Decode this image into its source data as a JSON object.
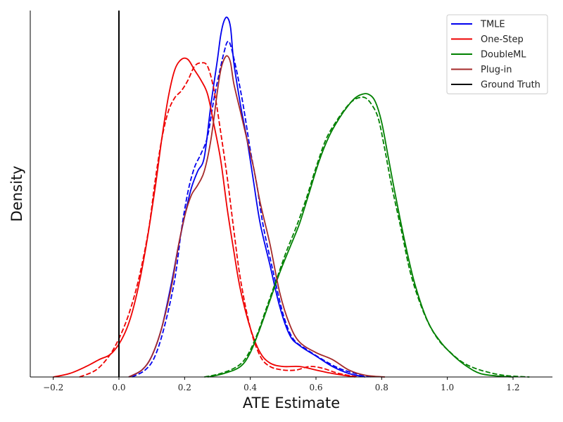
{
  "chart_data": {
    "type": "line",
    "title": "",
    "xlabel": "ATE Estimate",
    "ylabel": "Density",
    "xlim": [
      -0.27,
      1.32
    ],
    "ylim": [
      0,
      1.05
    ],
    "x_ticks": [
      -0.2,
      0.0,
      0.2,
      0.4,
      0.6,
      0.8,
      1.0,
      1.2
    ],
    "x_tick_labels": [
      "−0.2",
      "0.0",
      "0.2",
      "0.4",
      "0.6",
      "0.8",
      "1.0",
      "1.2"
    ],
    "y_ticks_shown": false,
    "grid": false,
    "legend_position": "top-right",
    "ground_truth": {
      "name": "Ground Truth",
      "x": 0.0,
      "color": "#000000"
    },
    "series": [
      {
        "name": "TMLE",
        "color": "#0000ee",
        "style": "solid",
        "points": [
          [
            0.03,
            0.0
          ],
          [
            0.07,
            0.02
          ],
          [
            0.1,
            0.06
          ],
          [
            0.13,
            0.14
          ],
          [
            0.16,
            0.27
          ],
          [
            0.18,
            0.37
          ],
          [
            0.2,
            0.46
          ],
          [
            0.22,
            0.54
          ],
          [
            0.24,
            0.59
          ],
          [
            0.26,
            0.63
          ],
          [
            0.28,
            0.78
          ],
          [
            0.3,
            0.91
          ],
          [
            0.31,
            0.98
          ],
          [
            0.32,
            1.02
          ],
          [
            0.33,
            1.03
          ],
          [
            0.34,
            1.0
          ],
          [
            0.35,
            0.9
          ],
          [
            0.37,
            0.78
          ],
          [
            0.39,
            0.68
          ],
          [
            0.41,
            0.56
          ],
          [
            0.43,
            0.44
          ],
          [
            0.46,
            0.32
          ],
          [
            0.49,
            0.2
          ],
          [
            0.52,
            0.12
          ],
          [
            0.55,
            0.09
          ],
          [
            0.6,
            0.06
          ],
          [
            0.65,
            0.03
          ],
          [
            0.7,
            0.01
          ],
          [
            0.75,
            0.0
          ]
        ]
      },
      {
        "name": "TMLE (dashed)",
        "color": "#0000ee",
        "style": "dashed",
        "points": [
          [
            0.04,
            0.0
          ],
          [
            0.08,
            0.02
          ],
          [
            0.11,
            0.06
          ],
          [
            0.14,
            0.15
          ],
          [
            0.17,
            0.28
          ],
          [
            0.19,
            0.42
          ],
          [
            0.21,
            0.53
          ],
          [
            0.23,
            0.6
          ],
          [
            0.25,
            0.64
          ],
          [
            0.27,
            0.69
          ],
          [
            0.29,
            0.8
          ],
          [
            0.31,
            0.89
          ],
          [
            0.32,
            0.93
          ],
          [
            0.33,
            0.96
          ],
          [
            0.34,
            0.95
          ],
          [
            0.36,
            0.87
          ],
          [
            0.38,
            0.77
          ],
          [
            0.4,
            0.65
          ],
          [
            0.42,
            0.55
          ],
          [
            0.44,
            0.43
          ],
          [
            0.47,
            0.3
          ],
          [
            0.5,
            0.18
          ],
          [
            0.53,
            0.11
          ],
          [
            0.57,
            0.08
          ],
          [
            0.62,
            0.05
          ],
          [
            0.67,
            0.025
          ],
          [
            0.72,
            0.01
          ],
          [
            0.77,
            0.0
          ]
        ]
      },
      {
        "name": "One-Step",
        "color": "#ee0000",
        "style": "solid",
        "points": [
          [
            -0.2,
            0.0
          ],
          [
            -0.15,
            0.01
          ],
          [
            -0.1,
            0.03
          ],
          [
            -0.06,
            0.05
          ],
          [
            -0.02,
            0.07
          ],
          [
            0.02,
            0.13
          ],
          [
            0.05,
            0.22
          ],
          [
            0.08,
            0.36
          ],
          [
            0.11,
            0.54
          ],
          [
            0.13,
            0.68
          ],
          [
            0.15,
            0.8
          ],
          [
            0.17,
            0.88
          ],
          [
            0.19,
            0.91
          ],
          [
            0.21,
            0.91
          ],
          [
            0.23,
            0.88
          ],
          [
            0.25,
            0.85
          ],
          [
            0.27,
            0.81
          ],
          [
            0.29,
            0.72
          ],
          [
            0.31,
            0.62
          ],
          [
            0.33,
            0.48
          ],
          [
            0.35,
            0.36
          ],
          [
            0.37,
            0.25
          ],
          [
            0.4,
            0.14
          ],
          [
            0.43,
            0.07
          ],
          [
            0.46,
            0.04
          ],
          [
            0.5,
            0.03
          ],
          [
            0.55,
            0.03
          ],
          [
            0.6,
            0.02
          ],
          [
            0.65,
            0.01
          ],
          [
            0.72,
            0.0
          ]
        ]
      },
      {
        "name": "One-Step (dashed)",
        "color": "#ee0000",
        "style": "dashed",
        "points": [
          [
            -0.12,
            0.0
          ],
          [
            -0.07,
            0.02
          ],
          [
            -0.03,
            0.06
          ],
          [
            0.0,
            0.11
          ],
          [
            0.03,
            0.18
          ],
          [
            0.06,
            0.28
          ],
          [
            0.09,
            0.42
          ],
          [
            0.11,
            0.56
          ],
          [
            0.13,
            0.68
          ],
          [
            0.15,
            0.76
          ],
          [
            0.17,
            0.8
          ],
          [
            0.19,
            0.82
          ],
          [
            0.21,
            0.85
          ],
          [
            0.23,
            0.89
          ],
          [
            0.25,
            0.9
          ],
          [
            0.27,
            0.89
          ],
          [
            0.29,
            0.82
          ],
          [
            0.31,
            0.7
          ],
          [
            0.33,
            0.57
          ],
          [
            0.35,
            0.42
          ],
          [
            0.37,
            0.28
          ],
          [
            0.4,
            0.14
          ],
          [
            0.43,
            0.06
          ],
          [
            0.46,
            0.03
          ],
          [
            0.5,
            0.02
          ],
          [
            0.54,
            0.02
          ],
          [
            0.58,
            0.03
          ],
          [
            0.62,
            0.025
          ],
          [
            0.67,
            0.01
          ],
          [
            0.73,
            0.0
          ]
        ]
      },
      {
        "name": "DoubleML",
        "color": "#008000",
        "style": "solid",
        "points": [
          [
            0.27,
            0.0
          ],
          [
            0.32,
            0.01
          ],
          [
            0.37,
            0.03
          ],
          [
            0.4,
            0.07
          ],
          [
            0.43,
            0.14
          ],
          [
            0.46,
            0.22
          ],
          [
            0.49,
            0.3
          ],
          [
            0.52,
            0.37
          ],
          [
            0.55,
            0.44
          ],
          [
            0.58,
            0.53
          ],
          [
            0.61,
            0.62
          ],
          [
            0.64,
            0.69
          ],
          [
            0.67,
            0.74
          ],
          [
            0.7,
            0.78
          ],
          [
            0.72,
            0.8
          ],
          [
            0.74,
            0.81
          ],
          [
            0.76,
            0.81
          ],
          [
            0.78,
            0.79
          ],
          [
            0.8,
            0.73
          ],
          [
            0.82,
            0.63
          ],
          [
            0.84,
            0.53
          ],
          [
            0.87,
            0.39
          ],
          [
            0.9,
            0.27
          ],
          [
            0.94,
            0.16
          ],
          [
            0.98,
            0.1
          ],
          [
            1.02,
            0.06
          ],
          [
            1.06,
            0.03
          ],
          [
            1.1,
            0.01
          ],
          [
            1.15,
            0.003
          ],
          [
            1.2,
            0.0
          ]
        ]
      },
      {
        "name": "DoubleML (dashed)",
        "color": "#008000",
        "style": "dashed",
        "points": [
          [
            0.26,
            0.0
          ],
          [
            0.31,
            0.01
          ],
          [
            0.36,
            0.03
          ],
          [
            0.39,
            0.06
          ],
          [
            0.42,
            0.12
          ],
          [
            0.45,
            0.2
          ],
          [
            0.48,
            0.28
          ],
          [
            0.51,
            0.36
          ],
          [
            0.54,
            0.43
          ],
          [
            0.57,
            0.51
          ],
          [
            0.6,
            0.6
          ],
          [
            0.63,
            0.68
          ],
          [
            0.66,
            0.73
          ],
          [
            0.69,
            0.77
          ],
          [
            0.71,
            0.79
          ],
          [
            0.73,
            0.8
          ],
          [
            0.75,
            0.8
          ],
          [
            0.77,
            0.78
          ],
          [
            0.79,
            0.74
          ],
          [
            0.81,
            0.65
          ],
          [
            0.83,
            0.55
          ],
          [
            0.86,
            0.42
          ],
          [
            0.89,
            0.29
          ],
          [
            0.93,
            0.18
          ],
          [
            0.97,
            0.11
          ],
          [
            1.01,
            0.07
          ],
          [
            1.05,
            0.04
          ],
          [
            1.1,
            0.02
          ],
          [
            1.17,
            0.005
          ],
          [
            1.25,
            0.0
          ]
        ]
      },
      {
        "name": "Plug-in",
        "color": "#a52a2a",
        "style": "solid",
        "points": [
          [
            0.03,
            0.0
          ],
          [
            0.07,
            0.02
          ],
          [
            0.1,
            0.06
          ],
          [
            0.13,
            0.14
          ],
          [
            0.16,
            0.26
          ],
          [
            0.18,
            0.37
          ],
          [
            0.2,
            0.46
          ],
          [
            0.22,
            0.52
          ],
          [
            0.24,
            0.55
          ],
          [
            0.26,
            0.59
          ],
          [
            0.28,
            0.68
          ],
          [
            0.3,
            0.82
          ],
          [
            0.31,
            0.88
          ],
          [
            0.32,
            0.91
          ],
          [
            0.33,
            0.92
          ],
          [
            0.34,
            0.9
          ],
          [
            0.35,
            0.84
          ],
          [
            0.37,
            0.76
          ],
          [
            0.39,
            0.68
          ],
          [
            0.41,
            0.6
          ],
          [
            0.43,
            0.5
          ],
          [
            0.46,
            0.38
          ],
          [
            0.49,
            0.24
          ],
          [
            0.52,
            0.15
          ],
          [
            0.55,
            0.1
          ],
          [
            0.6,
            0.07
          ],
          [
            0.65,
            0.05
          ],
          [
            0.7,
            0.02
          ],
          [
            0.75,
            0.005
          ],
          [
            0.81,
            0.0
          ]
        ]
      }
    ],
    "legend": [
      {
        "label": "TMLE",
        "color": "#0000ee"
      },
      {
        "label": "One-Step",
        "color": "#ee0000"
      },
      {
        "label": "DoubleML",
        "color": "#008000"
      },
      {
        "label": "Plug-in",
        "color": "#a52a2a"
      },
      {
        "label": "Ground Truth",
        "color": "#000000"
      }
    ]
  }
}
